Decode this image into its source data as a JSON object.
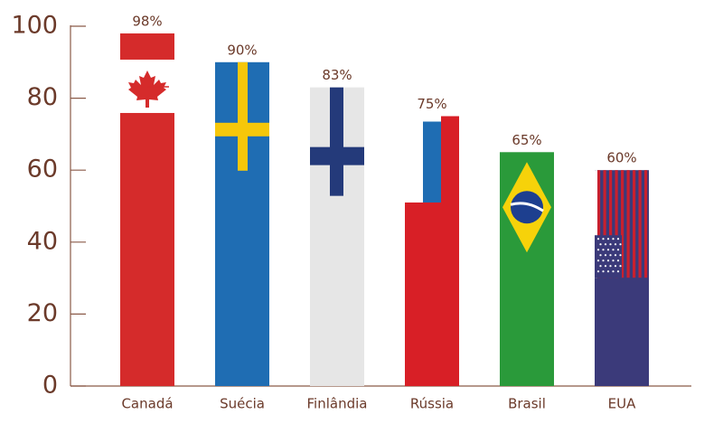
{
  "chart_data": {
    "type": "bar",
    "categories": [
      "Canadá",
      "Suécia",
      "Finlândia",
      "Rússia",
      "Brasil",
      "EUA"
    ],
    "values": [
      98,
      90,
      83,
      75,
      65,
      60
    ],
    "value_labels": [
      "98%",
      "90%",
      "83%",
      "75%",
      "65%",
      "60%"
    ],
    "colors": [
      "#d52b2b",
      "#1f6db3",
      "#e6e6e6",
      "#d81f26",
      "#2a9a3a",
      "#3b3a7a"
    ],
    "ylim": [
      0,
      100
    ],
    "yticks": [
      0,
      20,
      40,
      60,
      80,
      100
    ]
  }
}
